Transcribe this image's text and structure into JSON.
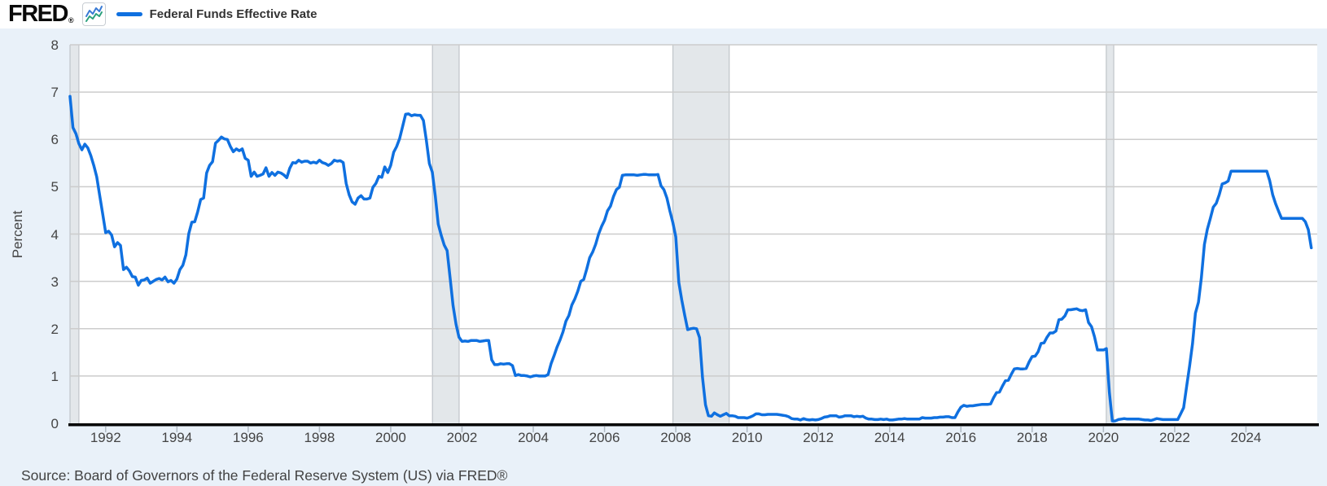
{
  "header": {
    "logo_text": "FRED",
    "registered_mark": "®",
    "legend_label": "Federal Funds Effective Rate"
  },
  "footer": {
    "source_text": "Source: Board of Governors of the Federal Reserve System (US) via FRED®"
  },
  "colors": {
    "page_background": "#e9f1f9",
    "header_background": "#ffffff",
    "plot_background": "#ffffff",
    "line": "#0f70e0",
    "gridline": "#cccccc",
    "recession_band": "#e3e7ea",
    "recession_band_edge": "#b6bcc1",
    "axis": "#000000",
    "tick_mark": "#b0bac3",
    "tick_label": "#444444",
    "icon_line_blue": "#3a7bd5",
    "icon_line_teal": "#2aa07c"
  },
  "chart_data": {
    "type": "line",
    "title": "Federal Funds Effective Rate",
    "xlabel": "",
    "ylabel": "Percent",
    "xlim": [
      1991,
      2026
    ],
    "ylim": [
      0,
      8
    ],
    "x_ticks": [
      1992,
      1994,
      1996,
      1998,
      2000,
      2002,
      2004,
      2006,
      2008,
      2010,
      2012,
      2014,
      2016,
      2018,
      2020,
      2022,
      2024
    ],
    "y_ticks": [
      0,
      1,
      2,
      3,
      4,
      5,
      6,
      7,
      8
    ],
    "grid": "horizontal",
    "legend_position": "top-left",
    "recession_bands": [
      [
        1990.54,
        1991.25
      ],
      [
        2001.17,
        2001.92
      ],
      [
        2007.92,
        2009.5
      ],
      [
        2020.08,
        2020.29
      ]
    ],
    "series": [
      {
        "name": "Federal Funds Effective Rate",
        "color": "#0f70e0",
        "units": "Percent",
        "frequency": "monthly",
        "monthly_by_year": [
          [
            1991,
            [
              6.91,
              6.25,
              6.12,
              5.91,
              5.78,
              5.9,
              5.82,
              5.66,
              5.45,
              5.21,
              4.81,
              4.43
            ]
          ],
          [
            1992,
            [
              4.03,
              4.06,
              3.98,
              3.73,
              3.82,
              3.76,
              3.25,
              3.3,
              3.22,
              3.1,
              3.09,
              2.92
            ]
          ],
          [
            1993,
            [
              3.02,
              3.03,
              3.07,
              2.96,
              3.0,
              3.04,
              3.06,
              3.03,
              3.09,
              2.99,
              3.02,
              2.96
            ]
          ],
          [
            1994,
            [
              3.05,
              3.25,
              3.34,
              3.56,
              4.01,
              4.25,
              4.26,
              4.47,
              4.73,
              4.76,
              5.29,
              5.45
            ]
          ],
          [
            1995,
            [
              5.53,
              5.92,
              5.98,
              6.05,
              6.01,
              6.0,
              5.85,
              5.74,
              5.8,
              5.76,
              5.8,
              5.6
            ]
          ],
          [
            1996,
            [
              5.56,
              5.22,
              5.31,
              5.22,
              5.24,
              5.27,
              5.4,
              5.22,
              5.3,
              5.24,
              5.31,
              5.29
            ]
          ],
          [
            1997,
            [
              5.25,
              5.19,
              5.39,
              5.51,
              5.5,
              5.56,
              5.52,
              5.54,
              5.54,
              5.5,
              5.52,
              5.5
            ]
          ],
          [
            1998,
            [
              5.56,
              5.51,
              5.49,
              5.45,
              5.49,
              5.56,
              5.54,
              5.55,
              5.51,
              5.07,
              4.83,
              4.68
            ]
          ],
          [
            1999,
            [
              4.63,
              4.76,
              4.81,
              4.74,
              4.74,
              4.76,
              4.99,
              5.07,
              5.22,
              5.2,
              5.42,
              5.3
            ]
          ],
          [
            2000,
            [
              5.45,
              5.73,
              5.85,
              6.02,
              6.27,
              6.53,
              6.54,
              6.5,
              6.52,
              6.51,
              6.51,
              6.4
            ]
          ],
          [
            2001,
            [
              5.98,
              5.49,
              5.31,
              4.8,
              4.21,
              3.97,
              3.77,
              3.65,
              3.07,
              2.49,
              2.09,
              1.82
            ]
          ],
          [
            2002,
            [
              1.73,
              1.74,
              1.73,
              1.75,
              1.75,
              1.75,
              1.73,
              1.74,
              1.75,
              1.75,
              1.34,
              1.24
            ]
          ],
          [
            2003,
            [
              1.24,
              1.26,
              1.25,
              1.26,
              1.26,
              1.22,
              1.01,
              1.03,
              1.01,
              1.01,
              1.0,
              0.98
            ]
          ],
          [
            2004,
            [
              1.0,
              1.01,
              1.0,
              1.0,
              1.0,
              1.03,
              1.26,
              1.43,
              1.61,
              1.76,
              1.93,
              2.16
            ]
          ],
          [
            2005,
            [
              2.28,
              2.5,
              2.63,
              2.79,
              3.0,
              3.04,
              3.26,
              3.5,
              3.62,
              3.78,
              4.0,
              4.16
            ]
          ],
          [
            2006,
            [
              4.29,
              4.49,
              4.59,
              4.79,
              4.94,
              4.99,
              5.24,
              5.25,
              5.25,
              5.25,
              5.25,
              5.24
            ]
          ],
          [
            2007,
            [
              5.25,
              5.26,
              5.26,
              5.25,
              5.25,
              5.25,
              5.26,
              5.02,
              4.94,
              4.76,
              4.49,
              4.24
            ]
          ],
          [
            2008,
            [
              3.94,
              2.98,
              2.61,
              2.28,
              1.98,
              2.0,
              2.01,
              2.0,
              1.81,
              0.97,
              0.39,
              0.16
            ]
          ],
          [
            2009,
            [
              0.15,
              0.22,
              0.18,
              0.15,
              0.18,
              0.21,
              0.16,
              0.16,
              0.15,
              0.12,
              0.12,
              0.12
            ]
          ],
          [
            2010,
            [
              0.11,
              0.13,
              0.16,
              0.2,
              0.2,
              0.18,
              0.18,
              0.19,
              0.19,
              0.19,
              0.19,
              0.18
            ]
          ],
          [
            2011,
            [
              0.17,
              0.16,
              0.14,
              0.1,
              0.09,
              0.09,
              0.07,
              0.1,
              0.08,
              0.07,
              0.08,
              0.07
            ]
          ],
          [
            2012,
            [
              0.08,
              0.1,
              0.13,
              0.14,
              0.16,
              0.16,
              0.16,
              0.13,
              0.14,
              0.16,
              0.16,
              0.16
            ]
          ],
          [
            2013,
            [
              0.14,
              0.15,
              0.14,
              0.15,
              0.11,
              0.09,
              0.09,
              0.08,
              0.08,
              0.09,
              0.08,
              0.09
            ]
          ],
          [
            2014,
            [
              0.07,
              0.07,
              0.08,
              0.09,
              0.09,
              0.1,
              0.09,
              0.09,
              0.09,
              0.09,
              0.09,
              0.12
            ]
          ],
          [
            2015,
            [
              0.11,
              0.11,
              0.11,
              0.12,
              0.12,
              0.13,
              0.13,
              0.14,
              0.14,
              0.12,
              0.12,
              0.24
            ]
          ],
          [
            2016,
            [
              0.34,
              0.38,
              0.36,
              0.37,
              0.37,
              0.38,
              0.39,
              0.4,
              0.4,
              0.4,
              0.41,
              0.54
            ]
          ],
          [
            2017,
            [
              0.65,
              0.66,
              0.79,
              0.9,
              0.91,
              1.04,
              1.15,
              1.16,
              1.15,
              1.15,
              1.16,
              1.3
            ]
          ],
          [
            2018,
            [
              1.41,
              1.42,
              1.51,
              1.69,
              1.7,
              1.82,
              1.91,
              1.91,
              1.95,
              2.19,
              2.2,
              2.27
            ]
          ],
          [
            2019,
            [
              2.4,
              2.4,
              2.41,
              2.42,
              2.39,
              2.38,
              2.4,
              2.13,
              2.04,
              1.83,
              1.55,
              1.55
            ]
          ],
          [
            2020,
            [
              1.55,
              1.58,
              0.65,
              0.05,
              0.05,
              0.08,
              0.09,
              0.1,
              0.09,
              0.09,
              0.09,
              0.09
            ]
          ],
          [
            2021,
            [
              0.09,
              0.08,
              0.07,
              0.07,
              0.06,
              0.08,
              0.1,
              0.09,
              0.08,
              0.08,
              0.08,
              0.08
            ]
          ],
          [
            2022,
            [
              0.08,
              0.08,
              0.2,
              0.33,
              0.77,
              1.21,
              1.68,
              2.33,
              2.56,
              3.08,
              3.78,
              4.1
            ]
          ],
          [
            2023,
            [
              4.33,
              4.57,
              4.65,
              4.83,
              5.06,
              5.08,
              5.12,
              5.33,
              5.33,
              5.33,
              5.33,
              5.33
            ]
          ],
          [
            2024,
            [
              5.33,
              5.33,
              5.33,
              5.33,
              5.33,
              5.33,
              5.33,
              5.33,
              5.13,
              4.83,
              4.64,
              4.48
            ]
          ],
          [
            2025,
            [
              4.33,
              4.33,
              4.33,
              4.33,
              4.33,
              4.33,
              4.33,
              4.33,
              4.26,
              4.09,
              3.71
            ]
          ]
        ]
      }
    ]
  }
}
